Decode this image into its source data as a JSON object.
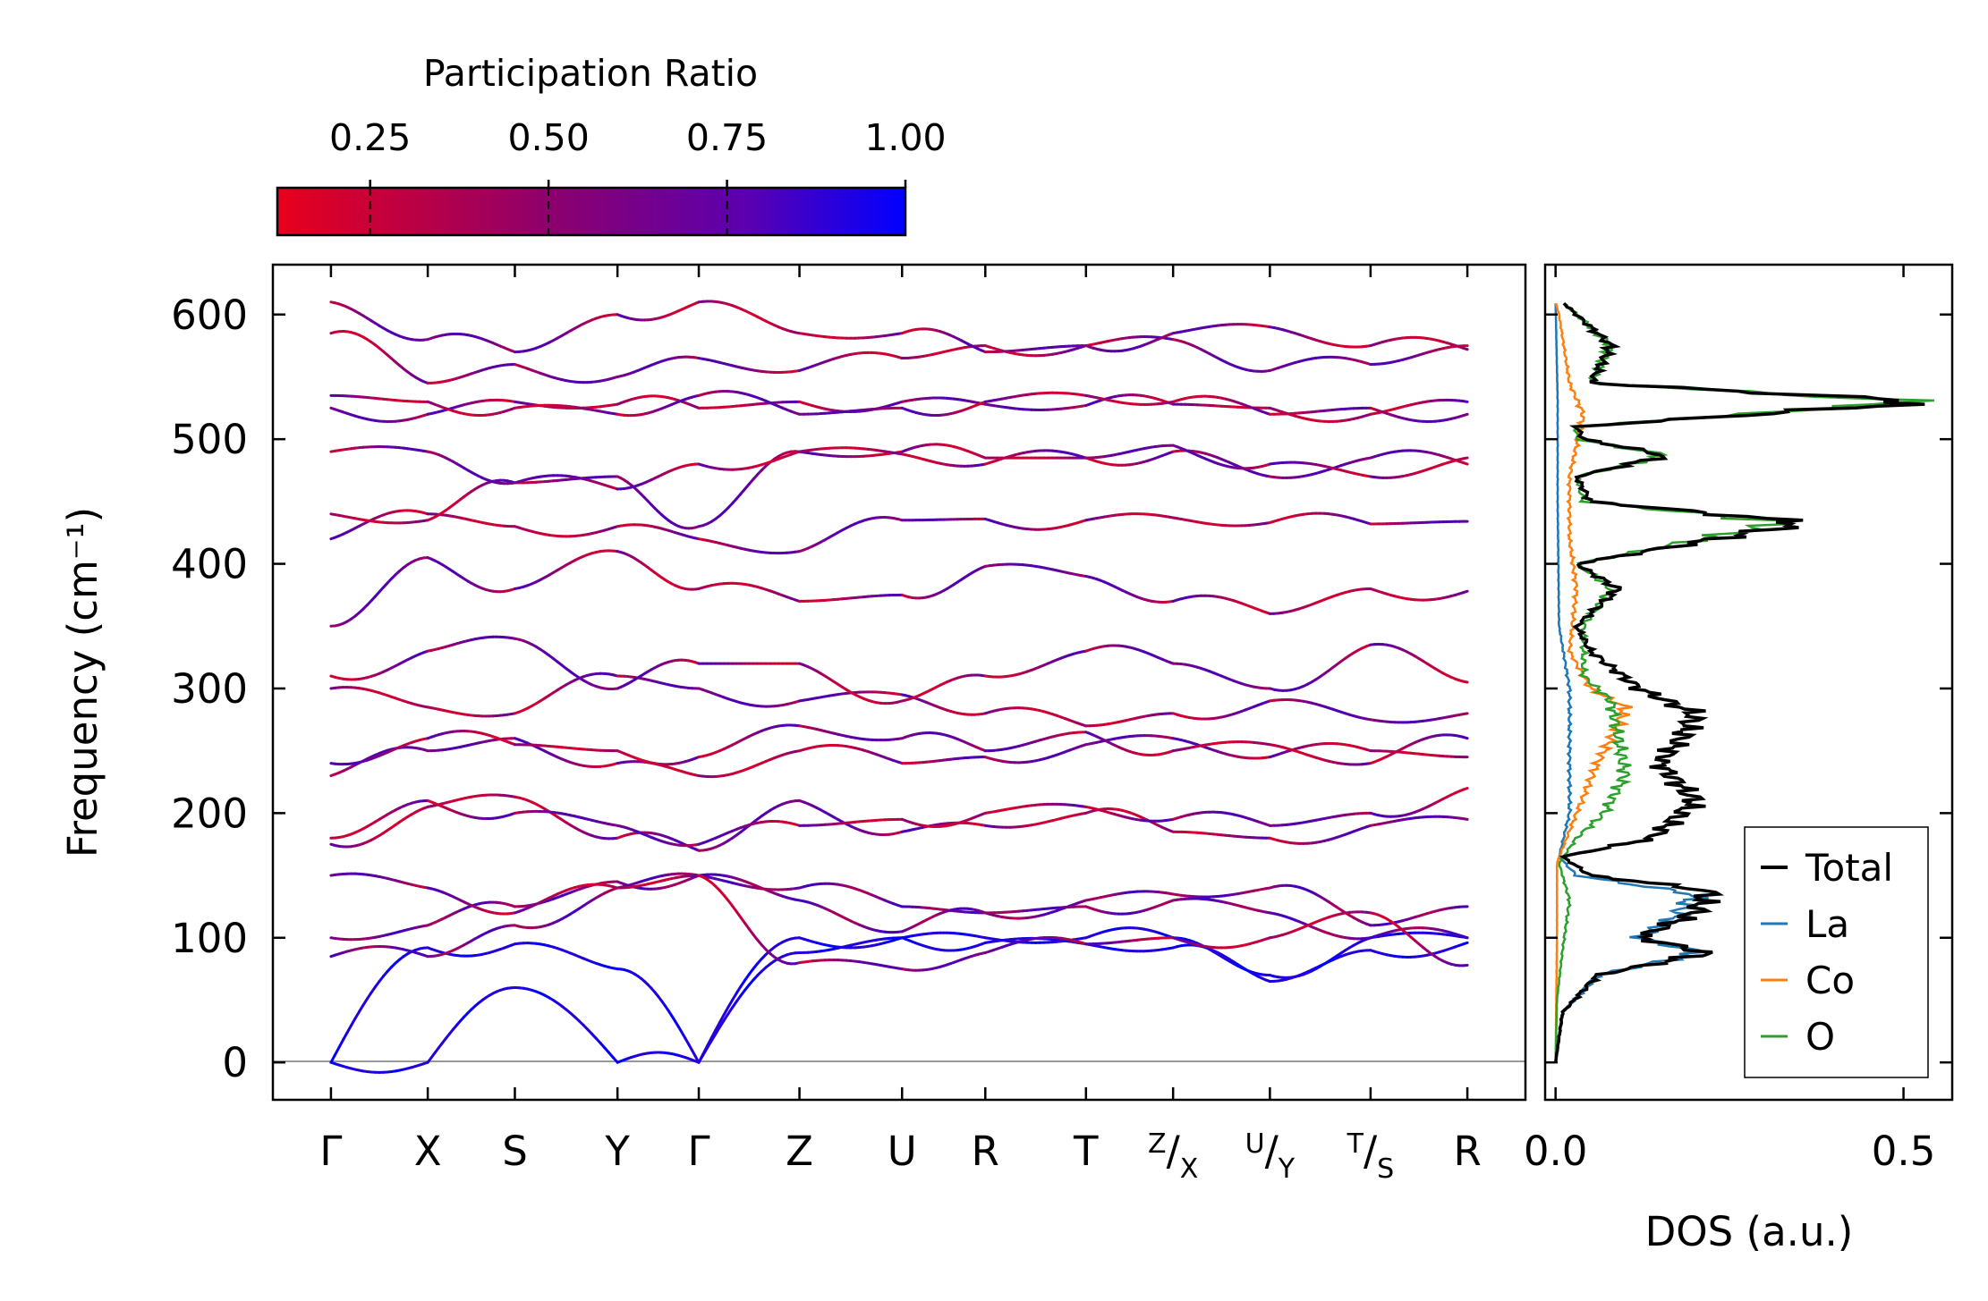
{
  "chart_data": [
    {
      "type": "line",
      "subtype": "phonon-band-structure",
      "title": "",
      "xlabel": "",
      "ylabel": "Frequency (cm⁻¹)",
      "ylim": [
        -30,
        640
      ],
      "yticks": [
        0,
        100,
        200,
        300,
        400,
        500,
        600
      ],
      "high_symmetry_points": [
        {
          "label": "Γ",
          "pos": 0.0
        },
        {
          "label": "X",
          "pos": 0.5
        },
        {
          "label": "S",
          "pos": 0.95
        },
        {
          "label": "Y",
          "pos": 1.48
        },
        {
          "label": "Γ",
          "pos": 1.9
        },
        {
          "label": "Z",
          "pos": 2.42
        },
        {
          "label": "U",
          "pos": 2.95
        },
        {
          "label": "R",
          "pos": 3.38
        },
        {
          "label": "T",
          "pos": 3.9
        },
        {
          "label": "Z",
          "sub": "X",
          "pos": 4.35
        },
        {
          "label": "U",
          "sub": "Y",
          "pos": 4.85
        },
        {
          "label": "T",
          "sub": "S",
          "pos": 5.37
        },
        {
          "label": "R",
          "pos": 5.87
        }
      ],
      "xlim": [
        -0.3,
        6.17
      ],
      "breaks_after": [
        8,
        9,
        10
      ],
      "node_values": [
        [
          0,
          0,
          60,
          0,
          0,
          100,
          100,
          100,
          100,
          100,
          70,
          100,
          100
        ],
        [
          0,
          92,
          95,
          75,
          0,
          88,
          100,
          96,
          95,
          92,
          65,
          90,
          96
        ],
        [
          85,
          85,
          110,
          140,
          150,
          140,
          125,
          120,
          130,
          135,
          140,
          110,
          125
        ],
        [
          100,
          110,
          125,
          145,
          150,
          130,
          105,
          120,
          125,
          130,
          120,
          100,
          100
        ],
        [
          150,
          140,
          120,
          140,
          150,
          80,
          75,
          88,
          95,
          100,
          100,
          120,
          78
        ],
        [
          175,
          205,
          213,
          180,
          170,
          210,
          185,
          190,
          200,
          185,
          180,
          190,
          195
        ],
        [
          180,
          210,
          200,
          190,
          175,
          190,
          195,
          200,
          205,
          195,
          190,
          200,
          220
        ],
        [
          230,
          250,
          260,
          240,
          230,
          250,
          240,
          245,
          255,
          260,
          245,
          250,
          245
        ],
        [
          240,
          260,
          255,
          250,
          245,
          270,
          260,
          250,
          265,
          250,
          255,
          240,
          260
        ],
        [
          300,
          285,
          280,
          310,
          300,
          290,
          295,
          280,
          270,
          280,
          290,
          275,
          280
        ],
        [
          310,
          330,
          340,
          300,
          320,
          320,
          290,
          310,
          330,
          320,
          300,
          335,
          305
        ],
        [
          350,
          405,
          380,
          410,
          380,
          370,
          375,
          398,
          390,
          370,
          360,
          380,
          378
        ],
        [
          420,
          440,
          430,
          430,
          420,
          410,
          435,
          436,
          435,
          437,
          433,
          432,
          434
        ],
        [
          440,
          435,
          465,
          470,
          430,
          490,
          490,
          485,
          485,
          490,
          470,
          485,
          480
        ],
        [
          490,
          490,
          465,
          460,
          480,
          490,
          488,
          480,
          485,
          495,
          480,
          470,
          485
        ],
        [
          525,
          520,
          530,
          528,
          525,
          530,
          530,
          528,
          527,
          528,
          525,
          520,
          530
        ],
        [
          535,
          530,
          525,
          520,
          535,
          520,
          525,
          530,
          535,
          530,
          520,
          525,
          520
        ],
        [
          585,
          545,
          560,
          550,
          565,
          555,
          565,
          575,
          575,
          580,
          555,
          560,
          575
        ],
        [
          610,
          580,
          570,
          600,
          610,
          585,
          585,
          570,
          575,
          585,
          590,
          575,
          572
        ]
      ]
    },
    {
      "type": "line",
      "subtype": "density-of-states",
      "xlabel": "DOS (a.u.)",
      "xticks": [
        "0.0",
        "0.5"
      ],
      "xlim": [
        -0.015,
        0.57
      ],
      "ylim": [
        -30,
        640
      ],
      "legend_position": "lower-right",
      "series": [
        {
          "name": "Total",
          "color": "#000000",
          "points": [
            [
              0,
              0
            ],
            [
              0.01,
              40
            ],
            [
              0.06,
              70
            ],
            [
              0.22,
              88
            ],
            [
              0.12,
              100
            ],
            [
              0.2,
              120
            ],
            [
              0.22,
              138
            ],
            [
              0.05,
              150
            ],
            [
              0.01,
              165
            ],
            [
              0.14,
              180
            ],
            [
              0.2,
              210
            ],
            [
              0.15,
              240
            ],
            [
              0.18,
              260
            ],
            [
              0.2,
              280
            ],
            [
              0.12,
              300
            ],
            [
              0.05,
              330
            ],
            [
              0.03,
              350
            ],
            [
              0.09,
              380
            ],
            [
              0.03,
              400
            ],
            [
              0.36,
              433
            ],
            [
              0.05,
              450
            ],
            [
              0.03,
              470
            ],
            [
              0.16,
              487
            ],
            [
              0.04,
              500
            ],
            [
              0.03,
              510
            ],
            [
              0.54,
              530
            ],
            [
              0.05,
              545
            ],
            [
              0.08,
              575
            ],
            [
              0.01,
              610
            ]
          ]
        },
        {
          "name": "La",
          "color": "#1f77b4",
          "points": [
            [
              0,
              0
            ],
            [
              0.01,
              40
            ],
            [
              0.06,
              70
            ],
            [
              0.21,
              88
            ],
            [
              0.12,
              100
            ],
            [
              0.17,
              115
            ],
            [
              0.2,
              135
            ],
            [
              0.03,
              150
            ],
            [
              0.005,
              165
            ],
            [
              0.02,
              200
            ],
            [
              0.02,
              250
            ],
            [
              0.02,
              300
            ],
            [
              0.005,
              350
            ],
            [
              0.003,
              450
            ],
            [
              0.003,
              530
            ],
            [
              0,
              610
            ]
          ]
        },
        {
          "name": "Co",
          "color": "#ff7f0e",
          "points": [
            [
              0,
              0
            ],
            [
              0.002,
              100
            ],
            [
              0.002,
              160
            ],
            [
              0.03,
              200
            ],
            [
              0.06,
              240
            ],
            [
              0.09,
              270
            ],
            [
              0.1,
              285
            ],
            [
              0.05,
              300
            ],
            [
              0.02,
              330
            ],
            [
              0.03,
              380
            ],
            [
              0.02,
              420
            ],
            [
              0.02,
              470
            ],
            [
              0.04,
              520
            ],
            [
              0.02,
              545
            ],
            [
              0.005,
              600
            ],
            [
              0,
              610
            ]
          ]
        },
        {
          "name": "O",
          "color": "#2ca02c",
          "points": [
            [
              0,
              0
            ],
            [
              0.002,
              50
            ],
            [
              0.01,
              90
            ],
            [
              0.02,
              130
            ],
            [
              0.005,
              160
            ],
            [
              0.03,
              180
            ],
            [
              0.07,
              200
            ],
            [
              0.1,
              230
            ],
            [
              0.09,
              260
            ],
            [
              0.08,
              290
            ],
            [
              0.04,
              310
            ],
            [
              0.04,
              350
            ],
            [
              0.08,
              380
            ],
            [
              0.03,
              400
            ],
            [
              0.33,
              433
            ],
            [
              0.04,
              450
            ],
            [
              0.03,
              470
            ],
            [
              0.16,
              487
            ],
            [
              0.03,
              500
            ],
            [
              0.03,
              510
            ],
            [
              0.52,
              530
            ],
            [
              0.05,
              545
            ],
            [
              0.08,
              575
            ],
            [
              0.01,
              610
            ]
          ]
        }
      ]
    }
  ],
  "colorbar": {
    "title": "Participation Ratio",
    "ticks": [
      0.25,
      0.5,
      0.75,
      1.0
    ],
    "tick_labels": [
      "0.25",
      "0.50",
      "0.75",
      "1.00"
    ],
    "range": [
      0.12,
      1.0
    ],
    "color_low": "#e8001c",
    "color_high": "#0000ff"
  }
}
